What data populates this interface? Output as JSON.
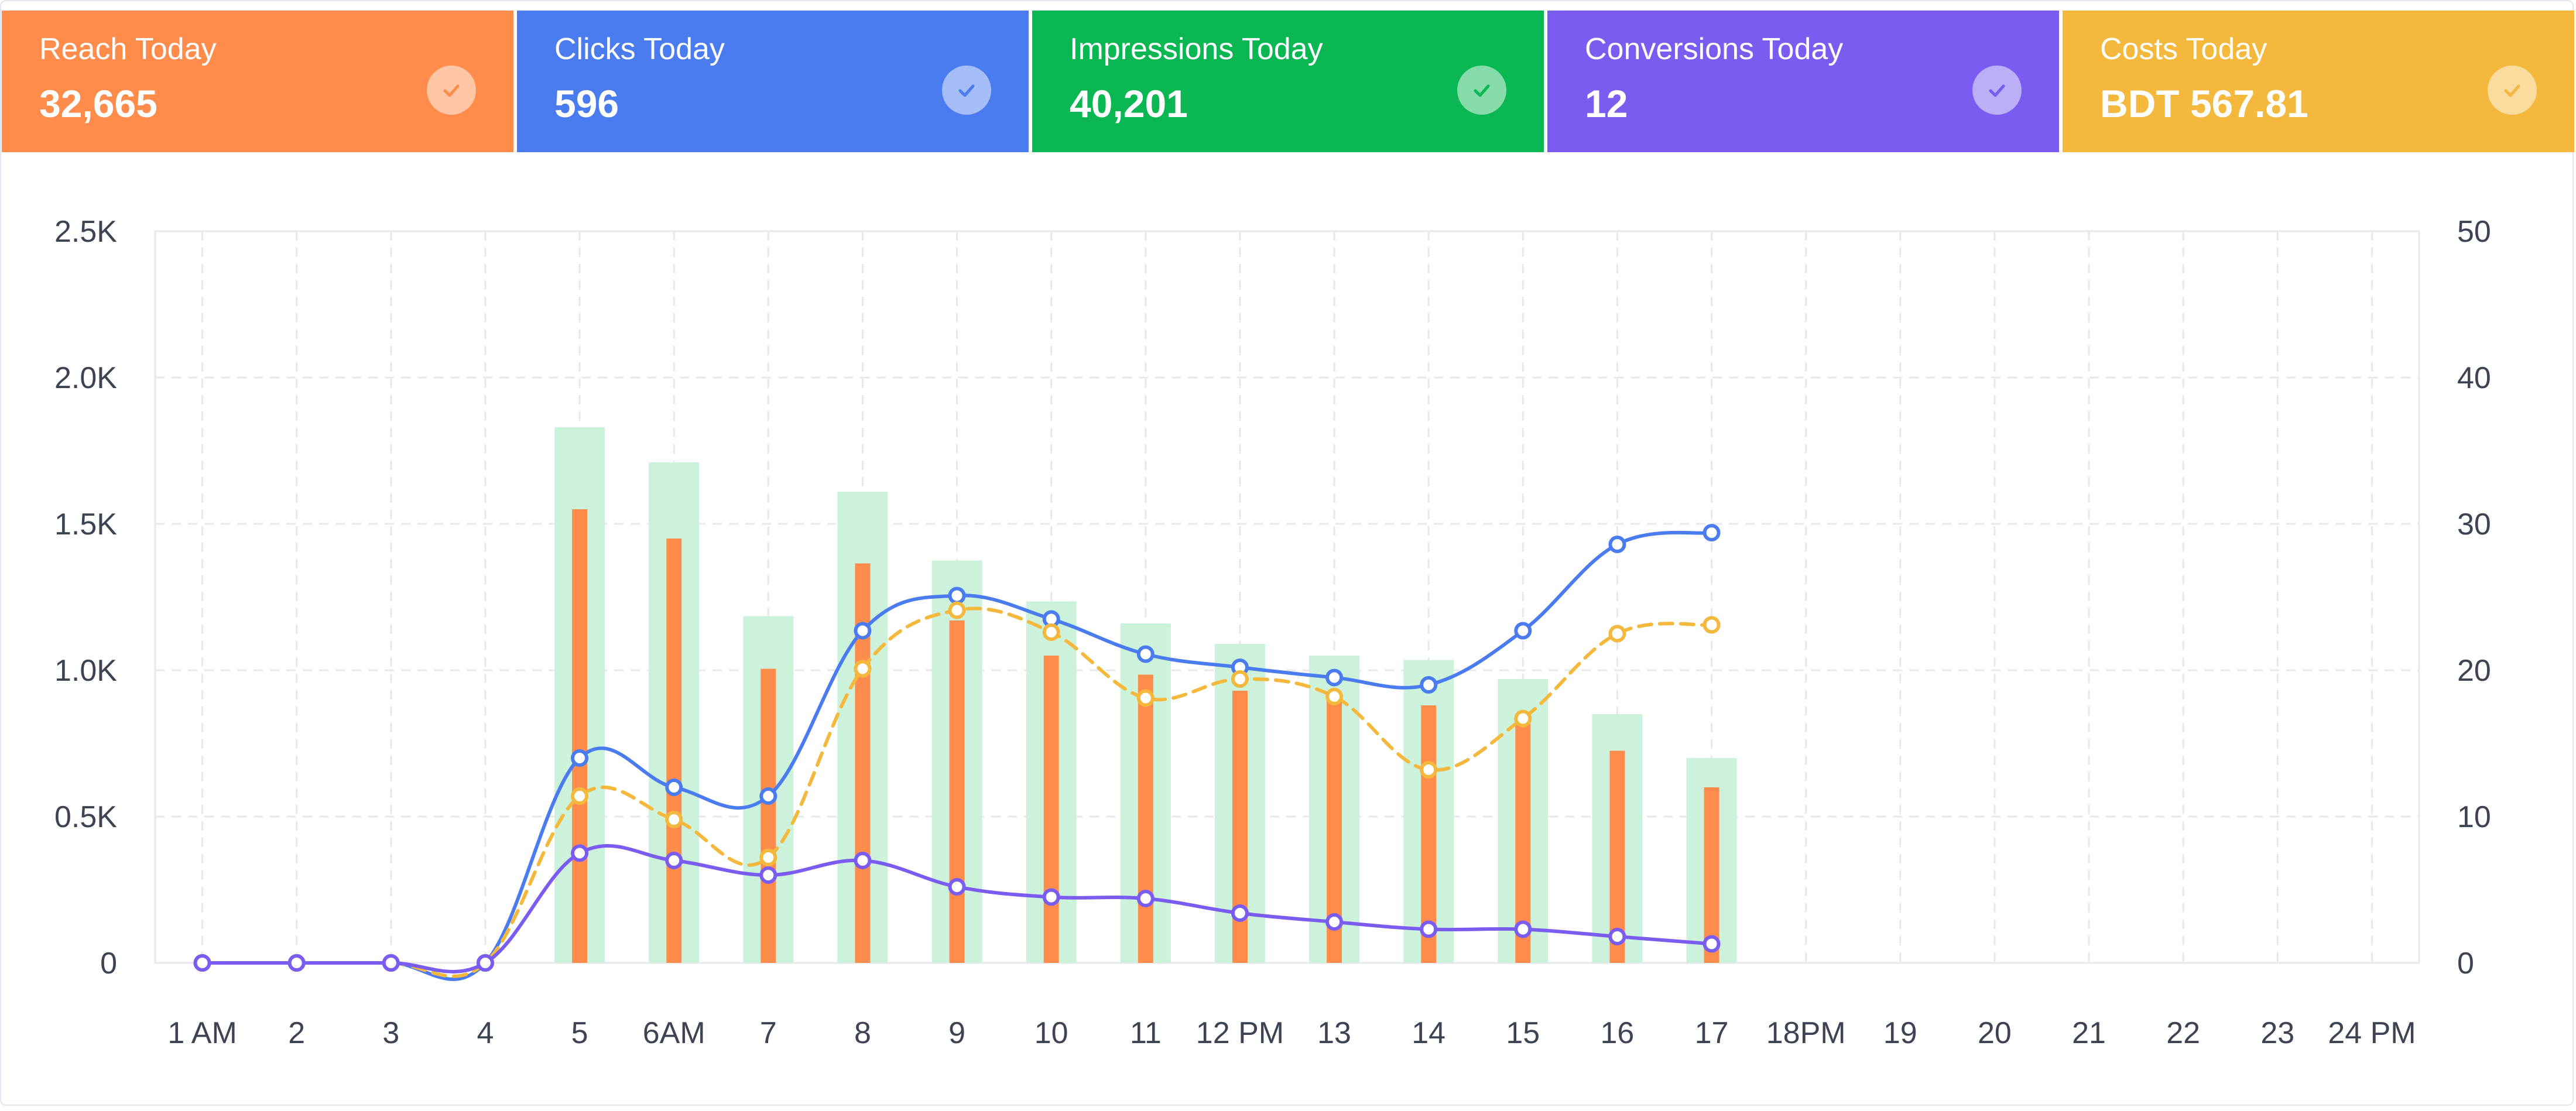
{
  "cards": [
    {
      "label": "Reach Today",
      "value": "32,665",
      "color": "#ff8c4b",
      "icon": "check-icon"
    },
    {
      "label": "Clicks Today",
      "value": "596",
      "color": "#4a7cf0",
      "icon": "check-icon"
    },
    {
      "label": "Impressions Today",
      "value": "40,201",
      "color": "#0bb753",
      "icon": "check-icon"
    },
    {
      "label": "Conversions Today",
      "value": "12",
      "color": "#7b5cf0",
      "icon": "check-icon"
    },
    {
      "label": "Costs Today",
      "value": "BDT 567.81",
      "color": "#f3b83c",
      "icon": "check-icon"
    }
  ],
  "chart_data": {
    "type": "bar",
    "categories": [
      "1 AM",
      "2",
      "3",
      "4",
      "5",
      "6AM",
      "7",
      "8",
      "9",
      "10",
      "11",
      "12 PM",
      "13",
      "14",
      "15",
      "16",
      "17",
      "18PM",
      "19",
      "20",
      "21",
      "22",
      "23",
      "24 PM"
    ],
    "left_axis": {
      "ticks": [
        "0",
        "0.5K",
        "1.0K",
        "1.5K",
        "2.0K",
        "2.5K"
      ],
      "range": [
        0,
        2500
      ]
    },
    "right_axis": {
      "ticks": [
        "0",
        "10",
        "20",
        "30",
        "40",
        "50"
      ],
      "range": [
        0,
        50
      ]
    },
    "grid": true,
    "series": [
      {
        "type": "bar",
        "axis": "left",
        "color": "#cdf2dc",
        "values": [
          0,
          0,
          0,
          0,
          1830,
          1710,
          1185,
          1610,
          1375,
          1235,
          1160,
          1090,
          1050,
          1035,
          970,
          850,
          700,
          null,
          null,
          null,
          null,
          null,
          null,
          null
        ]
      },
      {
        "type": "bar",
        "axis": "left",
        "color": "#ff8c4b",
        "values": [
          0,
          0,
          0,
          0,
          1550,
          1450,
          1005,
          1365,
          1170,
          1050,
          985,
          930,
          920,
          880,
          840,
          725,
          600,
          null,
          null,
          null,
          null,
          null,
          null,
          null
        ]
      },
      {
        "type": "line",
        "axis": "left",
        "color": "#4a7cf0",
        "dashed": false,
        "values": [
          0,
          0,
          0,
          0,
          700,
          600,
          570,
          1135,
          1255,
          1175,
          1055,
          1010,
          975,
          950,
          1135,
          1430,
          1470,
          null,
          null,
          null,
          null,
          null,
          null,
          null
        ]
      },
      {
        "type": "line",
        "axis": "left",
        "color": "#f3b83c",
        "dashed": true,
        "values": [
          0,
          0,
          0,
          0,
          570,
          490,
          360,
          1005,
          1205,
          1130,
          905,
          970,
          910,
          660,
          835,
          1125,
          1155,
          null,
          null,
          null,
          null,
          null,
          null,
          null
        ]
      },
      {
        "type": "line",
        "axis": "right",
        "color": "#7b5cf0",
        "dashed": false,
        "values": [
          0,
          0,
          0,
          0,
          7.5,
          7,
          6,
          7,
          5.2,
          4.5,
          4.4,
          3.4,
          2.8,
          2.3,
          2.3,
          1.8,
          1.3,
          null,
          null,
          null,
          null,
          null,
          null,
          null
        ]
      }
    ]
  }
}
